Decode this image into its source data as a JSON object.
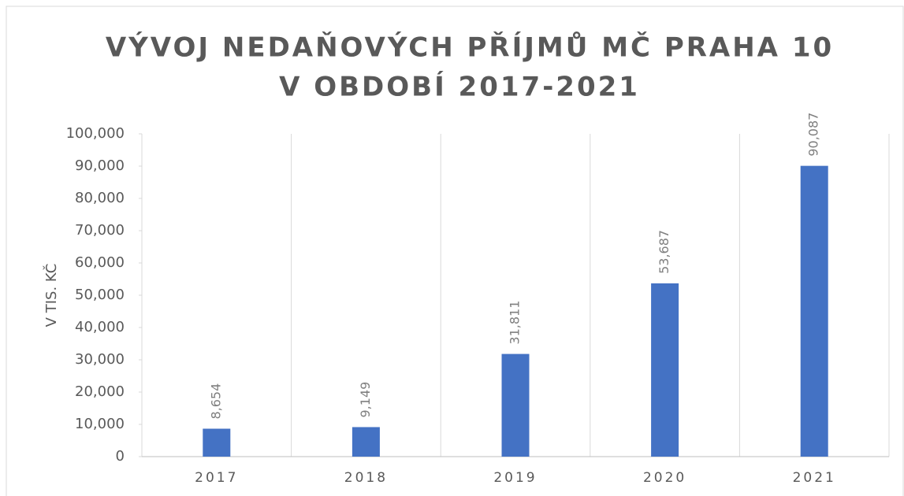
{
  "chart_data": {
    "type": "bar",
    "title": [
      "VÝVOJ NEDAŇOVÝCH PŘÍJMŮ MČ PRAHA 10",
      "V OBDOBÍ 2017-2021"
    ],
    "y_label": "V TIS. KČ",
    "categories": [
      "2017",
      "2018",
      "2019",
      "2020",
      "2021"
    ],
    "values": [
      8654,
      9149,
      31811,
      53687,
      90087
    ],
    "value_labels": [
      "8,654",
      "9,149",
      "31,811",
      "53,687",
      "90,087"
    ],
    "color": "#4472c4",
    "ylim": [
      0,
      100000
    ],
    "yticks": [
      0,
      {
        "value": 10000,
        "label": "10,000"
      },
      {
        "value": 20000,
        "label": "20,000"
      },
      {
        "value": 30000,
        "label": "30,000"
      },
      {
        "value": 40000,
        "label": "40,000"
      },
      {
        "value": 50000,
        "label": "50,000"
      },
      {
        "value": 60000,
        "label": "60,000"
      },
      {
        "value": 70000,
        "label": "70,000"
      },
      {
        "value": 80000,
        "label": "80,000"
      },
      {
        "value": 90000,
        "label": "90,000"
      },
      {
        "value": 100000,
        "label": "100,000"
      }
    ],
    "grid": true
  }
}
